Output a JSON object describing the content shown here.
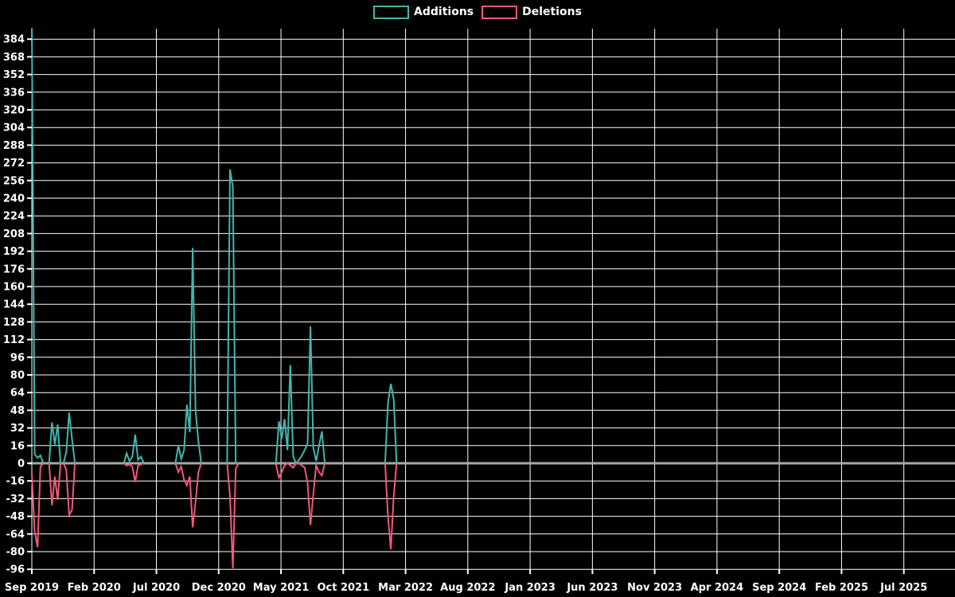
{
  "chart": {
    "legend": {
      "items": [
        {
          "label": "Additions",
          "color": "#40b7ae"
        },
        {
          "label": "Deletions",
          "color": "#f2587c"
        }
      ]
    },
    "colors": {
      "background": "#000000",
      "grid": "#ffffff",
      "zero_line": "#a0acb2",
      "text": "#ffffff"
    }
  },
  "chart_data": {
    "type": "line",
    "title": "",
    "legend_position": "top-center",
    "grid": true,
    "background": "#000000",
    "series": [
      {
        "name": "Additions",
        "color": "#40b7ae"
      },
      {
        "name": "Deletions",
        "color": "#f2587c"
      }
    ],
    "y_axis": {
      "min": -96,
      "max": 384,
      "tick_step": 16
    },
    "x_axis": {
      "unit": "weeks since Sep 2019, ticks every 5 months",
      "tick_labels": [
        "Sep 2019",
        "Feb 2020",
        "Jul 2020",
        "Dec 2020",
        "May 2021",
        "Oct 2021",
        "Mar 2022",
        "Aug 2022",
        "Jan 2023",
        "Jun 2023",
        "Nov 2023",
        "Apr 2024",
        "Sep 2024",
        "Feb 2025",
        "Jul 2025"
      ]
    },
    "clusters_format": "[week_index, additions, deletions]; clusters are separated by gaps where the lines are not drawn (zero axis shows through)",
    "clusters": [
      [
        [
          0,
          394,
          -10
        ],
        [
          1,
          8,
          -62
        ],
        [
          2,
          5,
          -76
        ],
        [
          3,
          7,
          -3
        ],
        [
          4,
          0,
          0
        ]
      ],
      [
        [
          6,
          0,
          0
        ],
        [
          7,
          37,
          -38
        ],
        [
          8,
          17,
          -12
        ],
        [
          9,
          35,
          -33
        ],
        [
          10,
          0,
          0
        ]
      ],
      [
        [
          11,
          0,
          0
        ],
        [
          12,
          10,
          -6
        ],
        [
          13,
          46,
          -47
        ],
        [
          14,
          22,
          -42
        ],
        [
          15,
          0,
          0
        ]
      ],
      [
        [
          32,
          0,
          0
        ],
        [
          33,
          9,
          -2
        ],
        [
          34,
          2,
          -1
        ],
        [
          35,
          6,
          -3
        ],
        [
          36,
          26,
          -17
        ],
        [
          37,
          3,
          -2
        ],
        [
          38,
          6,
          -1
        ],
        [
          39,
          0,
          0
        ]
      ],
      [
        [
          50,
          0,
          0
        ],
        [
          51,
          16,
          -8
        ],
        [
          52,
          4,
          -3
        ],
        [
          53,
          12,
          -15
        ],
        [
          54,
          53,
          -20
        ],
        [
          55,
          28,
          -12
        ],
        [
          56,
          195,
          -58
        ],
        [
          57,
          48,
          -35
        ],
        [
          58,
          20,
          -8
        ],
        [
          59,
          0,
          0
        ]
      ],
      [
        [
          68,
          0,
          0
        ],
        [
          69,
          266,
          -30
        ],
        [
          70,
          250,
          -95
        ],
        [
          71,
          0,
          -5
        ],
        [
          72,
          0,
          0
        ]
      ],
      [
        [
          85,
          0,
          -1
        ],
        [
          86,
          38,
          -13
        ],
        [
          87,
          22,
          -8
        ],
        [
          88,
          40,
          -2
        ],
        [
          89,
          12,
          0
        ],
        [
          90,
          89,
          -2
        ],
        [
          91,
          6,
          -4
        ],
        [
          92,
          0,
          0
        ],
        [
          93,
          3,
          0
        ],
        [
          94,
          7,
          -2
        ],
        [
          95,
          12,
          -4
        ],
        [
          96,
          18,
          -18
        ],
        [
          97,
          124,
          -56
        ],
        [
          98,
          14,
          -28
        ],
        [
          99,
          2,
          -2
        ],
        [
          100,
          16,
          -8
        ],
        [
          101,
          29,
          -11
        ],
        [
          102,
          0,
          0
        ]
      ],
      [
        [
          123,
          0,
          0
        ],
        [
          124,
          55,
          -48
        ],
        [
          125,
          72,
          -78
        ],
        [
          126,
          58,
          -30
        ],
        [
          127,
          0,
          0
        ]
      ]
    ]
  }
}
